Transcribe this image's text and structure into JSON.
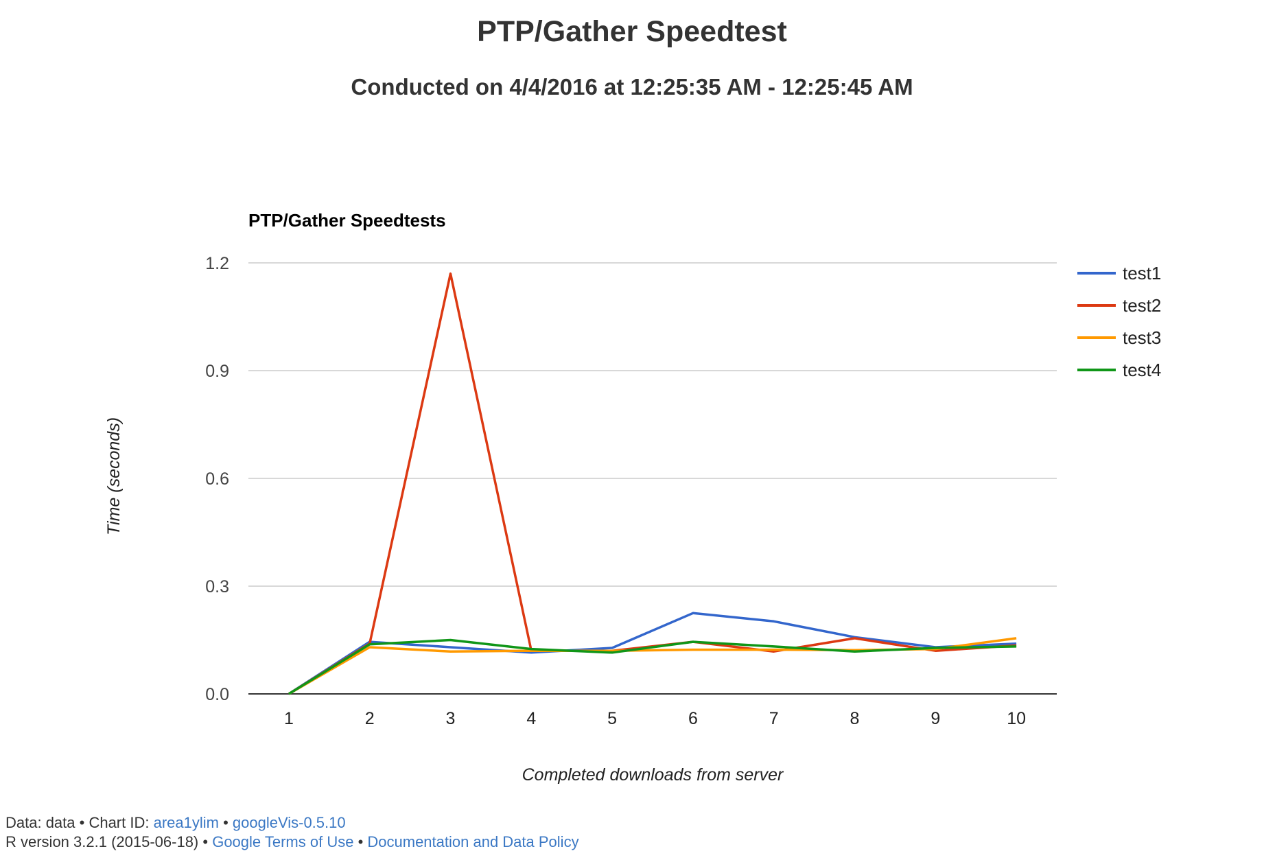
{
  "page": {
    "title": "PTP/Gather Speedtest",
    "subtitle": "Conducted on 4/4/2016 at 12:25:35 AM - 12:25:45 AM"
  },
  "chart_data": {
    "type": "line",
    "title": "PTP/Gather Speedtests",
    "xlabel": "Completed downloads from server",
    "ylabel": "Time (seconds)",
    "ylim": [
      0,
      1.2
    ],
    "yticks": [
      0.0,
      0.3,
      0.6,
      0.9,
      1.2
    ],
    "ytick_labels": [
      "0.0",
      "0.3",
      "0.6",
      "0.9",
      "1.2"
    ],
    "x": [
      1,
      2,
      3,
      4,
      5,
      6,
      7,
      8,
      9,
      10
    ],
    "grid": true,
    "legend": "right",
    "series": [
      {
        "name": "test1",
        "color": "#3366cc",
        "values": [
          0.0,
          0.145,
          0.13,
          0.115,
          0.128,
          0.225,
          0.202,
          0.158,
          0.13,
          0.14
        ]
      },
      {
        "name": "test2",
        "color": "#dc3912",
        "values": [
          0.0,
          0.14,
          1.17,
          0.12,
          0.12,
          0.145,
          0.118,
          0.155,
          0.12,
          0.135
        ]
      },
      {
        "name": "test3",
        "color": "#ff9900",
        "values": [
          0.0,
          0.13,
          0.118,
          0.12,
          0.12,
          0.123,
          0.123,
          0.122,
          0.125,
          0.155
        ]
      },
      {
        "name": "test4",
        "color": "#109618",
        "values": [
          0.0,
          0.138,
          0.15,
          0.125,
          0.115,
          0.145,
          0.132,
          0.118,
          0.128,
          0.132
        ]
      }
    ]
  },
  "footer": {
    "line1_prefix": "Data: data • Chart ID: ",
    "chart_id_link": "area1ylim",
    "line1_sep": " • ",
    "googlevis_link": "googleVis-0.5.10",
    "line2_prefix": "R version 3.2.1 (2015-06-18) • ",
    "terms_link": "Google Terms of Use",
    "line2_sep": " • ",
    "policy_link": "Documentation and Data Policy"
  }
}
